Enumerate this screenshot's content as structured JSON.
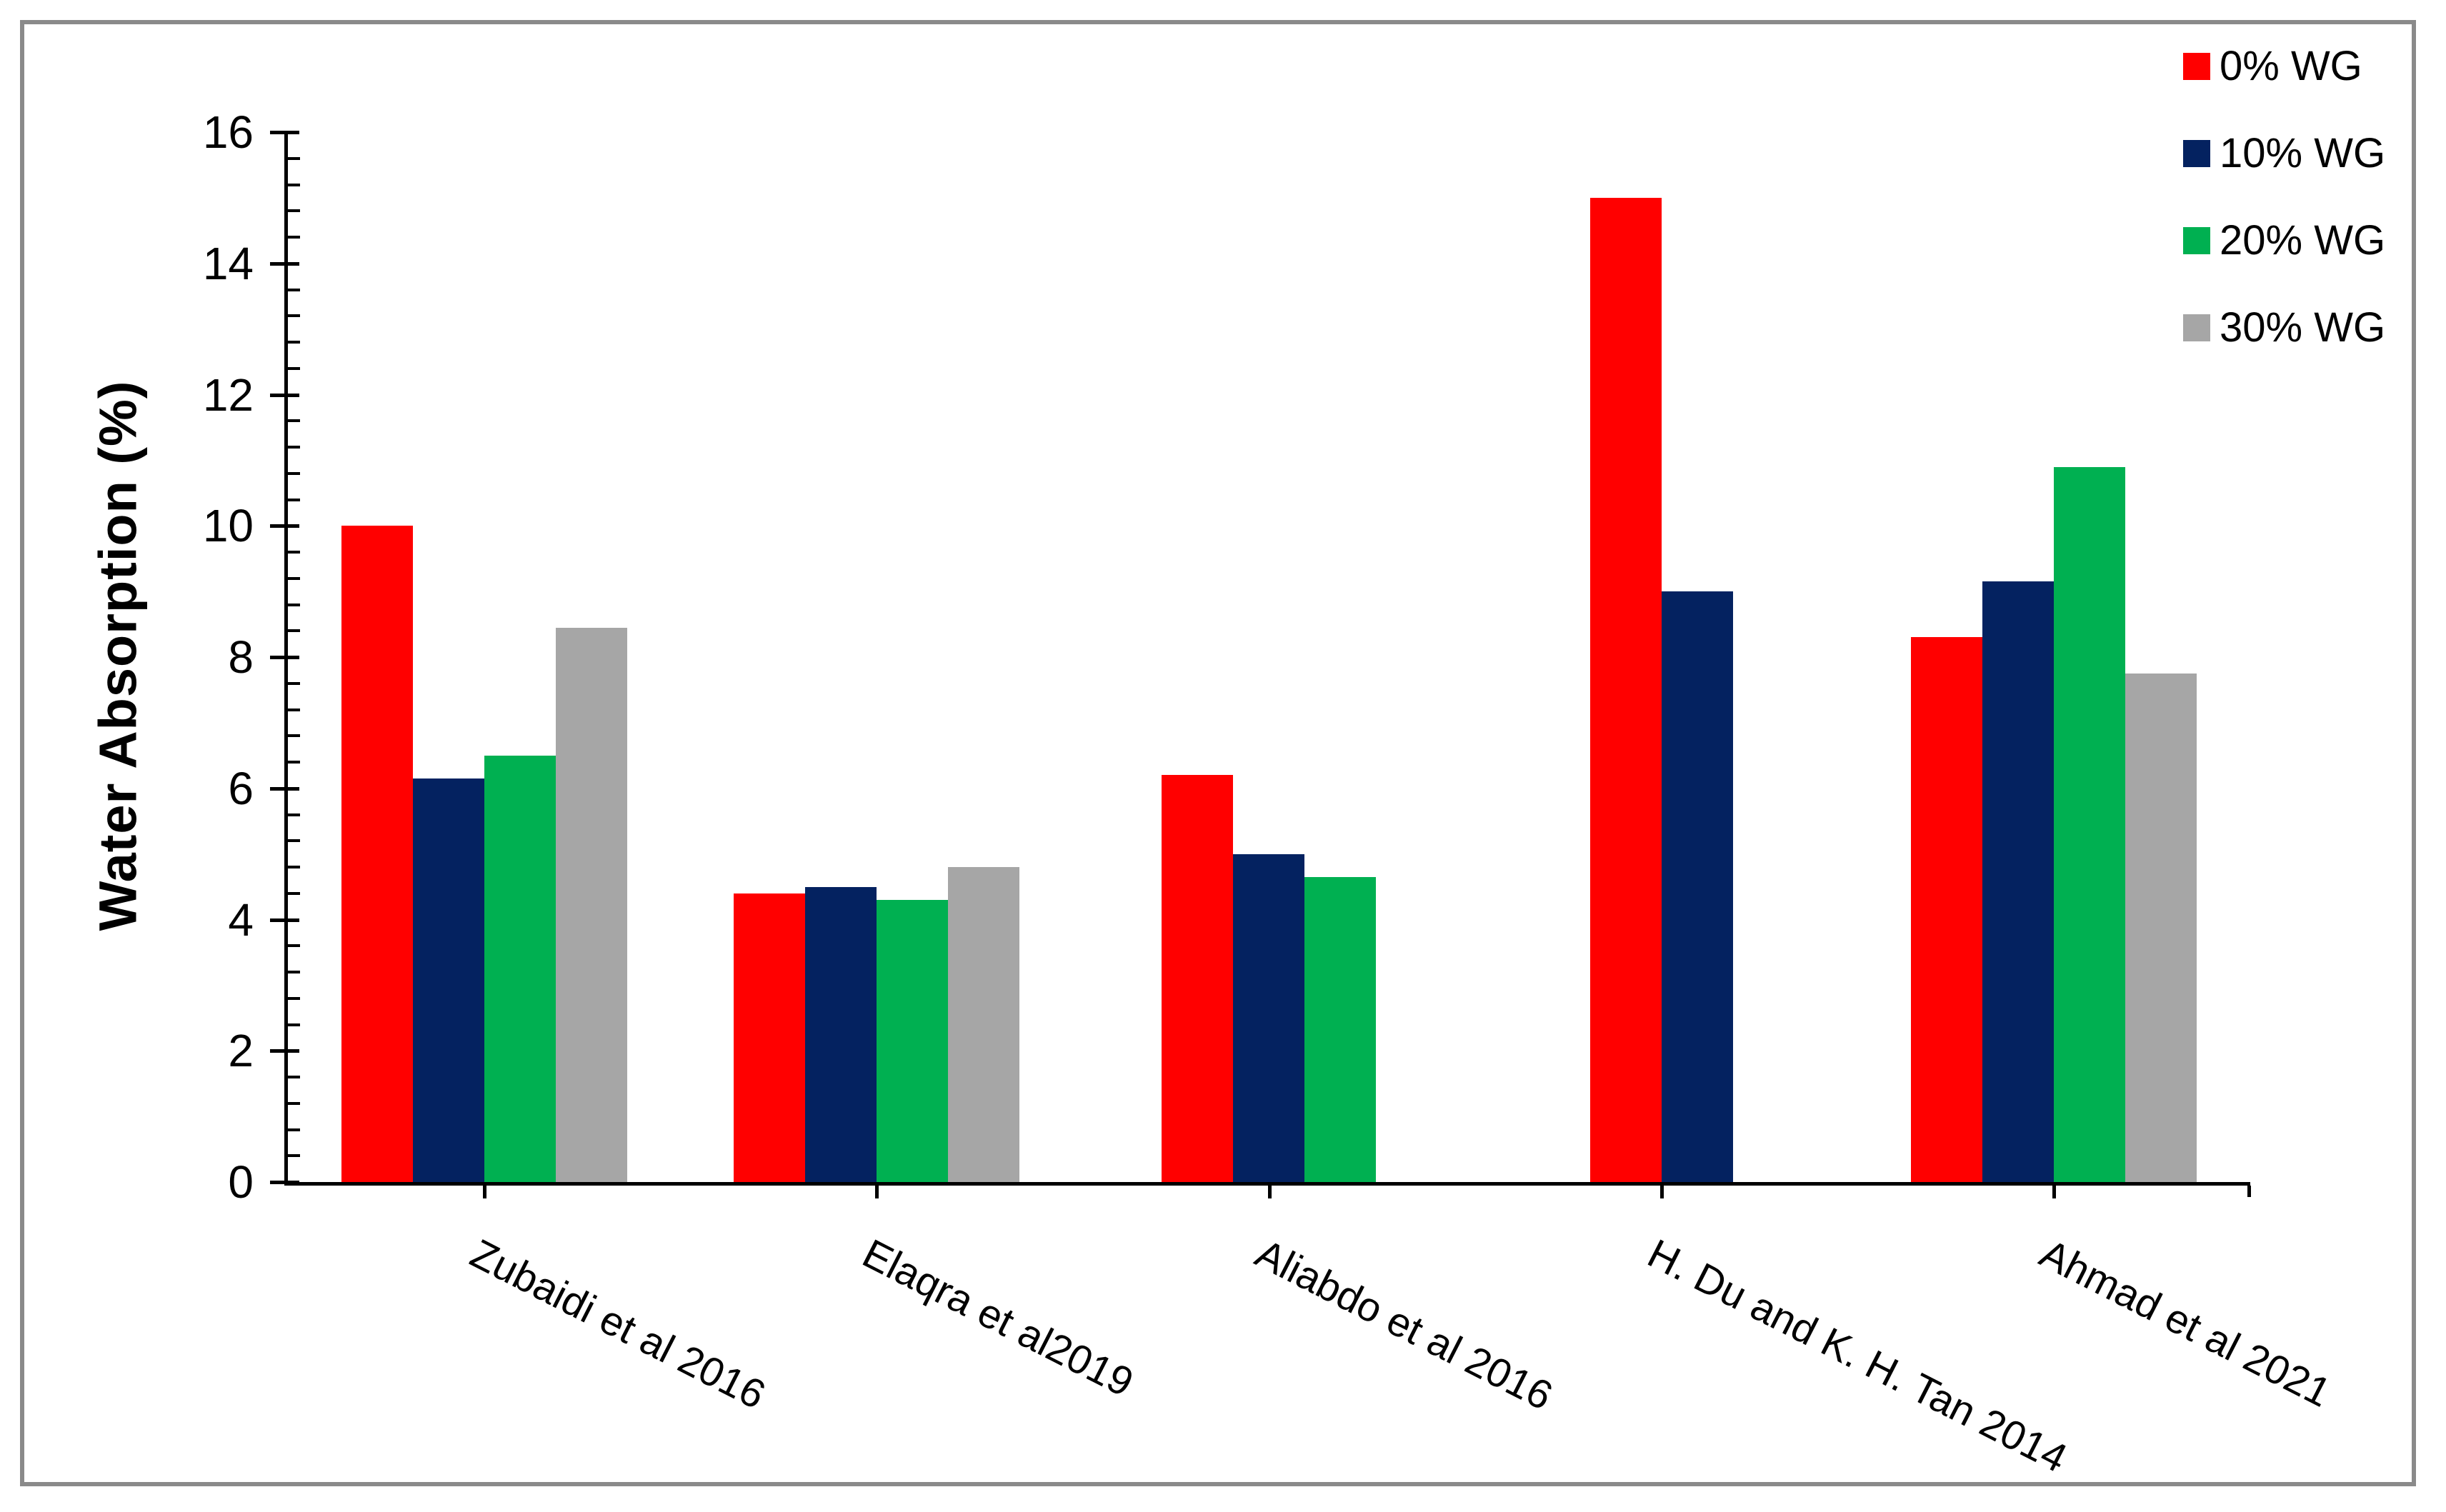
{
  "chart_data": {
    "type": "bar",
    "title": "",
    "xlabel": "",
    "ylabel": "Water Absorption (%)",
    "ylim": [
      0,
      16
    ],
    "y_major_tick": 2,
    "y_minor_tick": 0.4,
    "yticks": [
      0,
      2,
      4,
      6,
      8,
      10,
      12,
      14,
      16
    ],
    "grid": false,
    "legend_position": "top-right",
    "categories": [
      "Zubaidi et al 2016",
      "Elaqra et al2019",
      "Aliabdo et al 2016",
      "H. Du and K. H. Tan 2014",
      "Ahmad et al 2021"
    ],
    "series": [
      {
        "name": "0% WG",
        "color": "#FF0000",
        "values": [
          10.0,
          4.4,
          6.2,
          15.0,
          8.3
        ]
      },
      {
        "name": "10% WG",
        "color": "#042260",
        "values": [
          6.15,
          4.5,
          5.0,
          9.0,
          9.15
        ]
      },
      {
        "name": "20% WG",
        "color": "#00B051",
        "values": [
          6.5,
          4.3,
          4.65,
          null,
          10.9
        ]
      },
      {
        "name": "30% WG",
        "color": "#A6A6A6",
        "values": [
          8.45,
          4.8,
          null,
          null,
          7.75
        ]
      }
    ]
  },
  "style": {
    "axis_color": "#000000",
    "text_color": "#000000",
    "frame_border_color": "#8A8A8A",
    "background": "#FFFFFF"
  }
}
